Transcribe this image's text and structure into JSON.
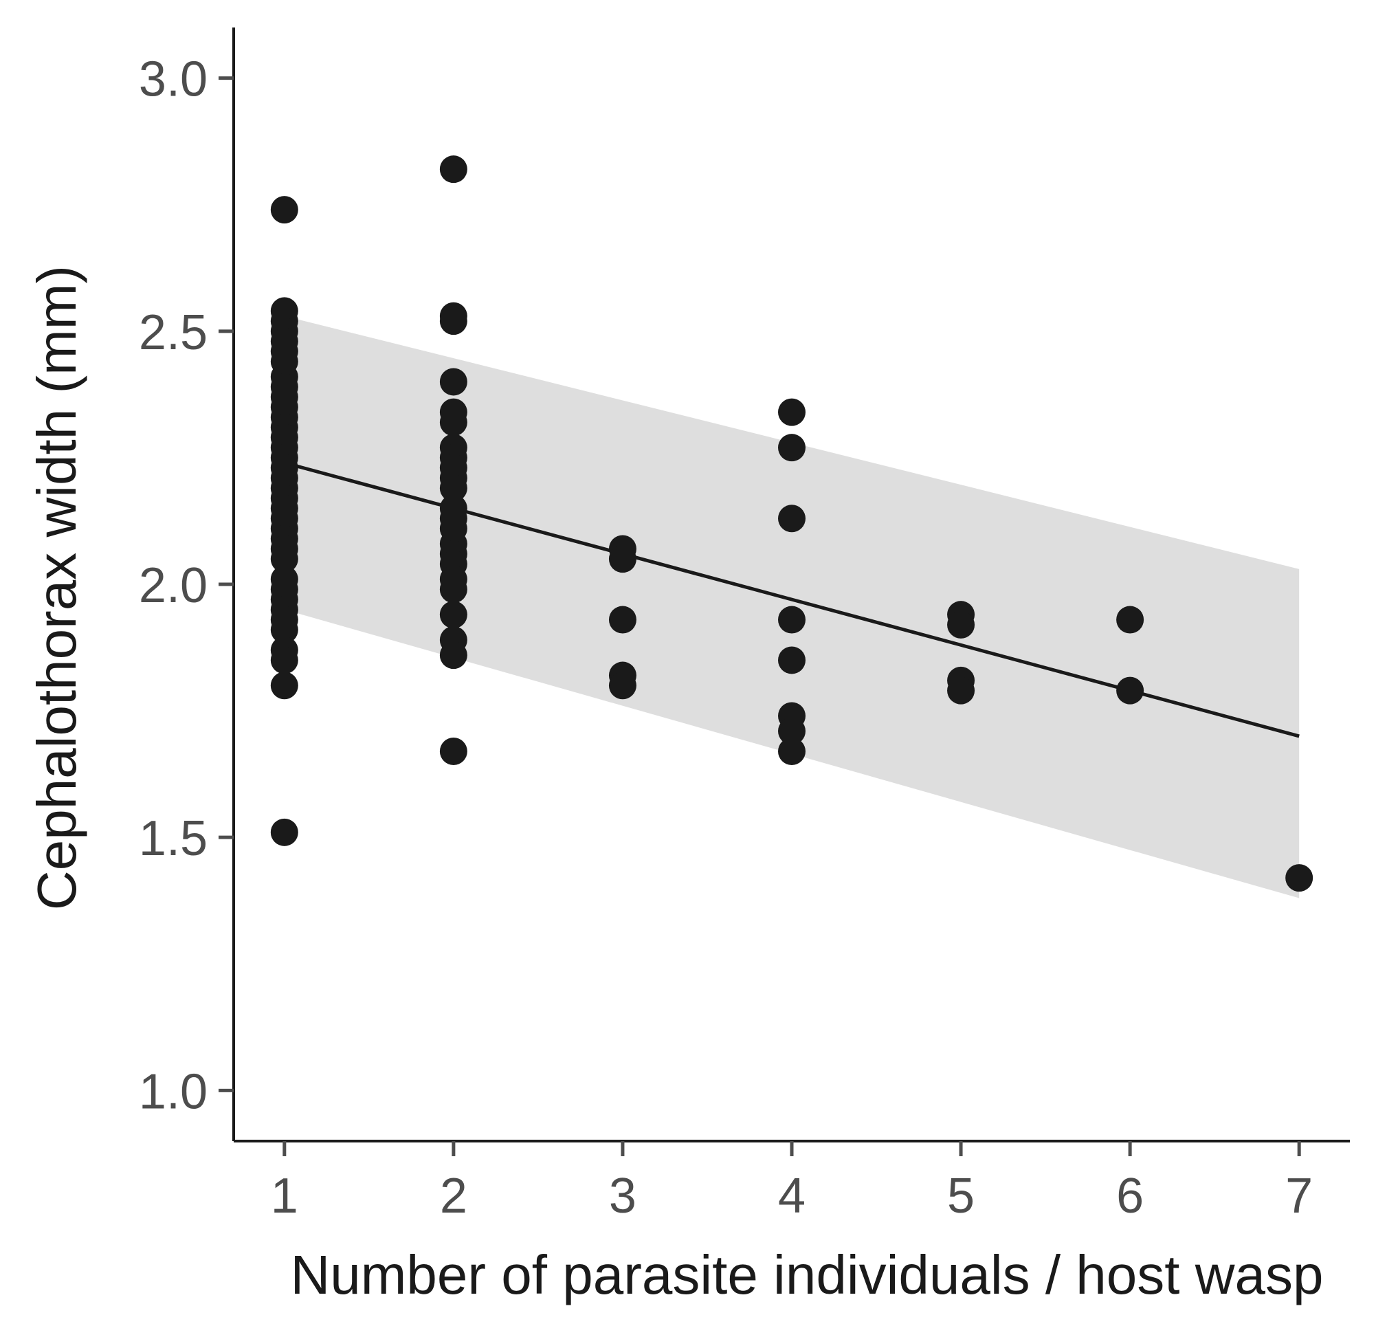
{
  "chart_data": {
    "type": "scatter",
    "xlabel": "Number of parasite individuals / host wasp",
    "ylabel": "Cephalothorax width (mm)",
    "xlim": [
      0.7,
      7.3
    ],
    "ylim": [
      0.9,
      3.1
    ],
    "x_ticks": [
      1,
      2,
      3,
      4,
      5,
      6,
      7
    ],
    "x_tick_labels": [
      "1",
      "2",
      "3",
      "4",
      "5",
      "6",
      "7"
    ],
    "y_ticks": [
      1.0,
      1.5,
      2.0,
      2.5,
      3.0
    ],
    "y_tick_labels": [
      "1.0",
      "1.5",
      "2.0",
      "2.5",
      "3.0"
    ],
    "grid": false,
    "colors": {
      "points": "#1a1a1a",
      "line": "#1a1a1a",
      "band": "#dedede",
      "axis": "#1a1a1a",
      "tick": "#4d4d4d"
    },
    "points": [
      {
        "x": 1,
        "y": 2.74
      },
      {
        "x": 1,
        "y": 2.54
      },
      {
        "x": 1,
        "y": 2.52
      },
      {
        "x": 1,
        "y": 2.5
      },
      {
        "x": 1,
        "y": 2.48
      },
      {
        "x": 1,
        "y": 2.46
      },
      {
        "x": 1,
        "y": 2.44
      },
      {
        "x": 1,
        "y": 2.41
      },
      {
        "x": 1,
        "y": 2.39
      },
      {
        "x": 1,
        "y": 2.37
      },
      {
        "x": 1,
        "y": 2.35
      },
      {
        "x": 1,
        "y": 2.33
      },
      {
        "x": 1,
        "y": 2.31
      },
      {
        "x": 1,
        "y": 2.29
      },
      {
        "x": 1,
        "y": 2.27
      },
      {
        "x": 1,
        "y": 2.25
      },
      {
        "x": 1,
        "y": 2.23
      },
      {
        "x": 1,
        "y": 2.21
      },
      {
        "x": 1,
        "y": 2.19
      },
      {
        "x": 1,
        "y": 2.17
      },
      {
        "x": 1,
        "y": 2.15
      },
      {
        "x": 1,
        "y": 2.13
      },
      {
        "x": 1,
        "y": 2.11
      },
      {
        "x": 1,
        "y": 2.09
      },
      {
        "x": 1,
        "y": 2.07
      },
      {
        "x": 1,
        "y": 2.05
      },
      {
        "x": 1,
        "y": 2.01
      },
      {
        "x": 1,
        "y": 1.99
      },
      {
        "x": 1,
        "y": 1.97
      },
      {
        "x": 1,
        "y": 1.95
      },
      {
        "x": 1,
        "y": 1.93
      },
      {
        "x": 1,
        "y": 1.91
      },
      {
        "x": 1,
        "y": 1.87
      },
      {
        "x": 1,
        "y": 1.85
      },
      {
        "x": 1,
        "y": 1.8
      },
      {
        "x": 1,
        "y": 1.51
      },
      {
        "x": 2,
        "y": 2.82
      },
      {
        "x": 2,
        "y": 2.53
      },
      {
        "x": 2,
        "y": 2.52
      },
      {
        "x": 2,
        "y": 2.4
      },
      {
        "x": 2,
        "y": 2.34
      },
      {
        "x": 2,
        "y": 2.32
      },
      {
        "x": 2,
        "y": 2.27
      },
      {
        "x": 2,
        "y": 2.25
      },
      {
        "x": 2,
        "y": 2.23
      },
      {
        "x": 2,
        "y": 2.21
      },
      {
        "x": 2,
        "y": 2.19
      },
      {
        "x": 2,
        "y": 2.15
      },
      {
        "x": 2,
        "y": 2.13
      },
      {
        "x": 2,
        "y": 2.11
      },
      {
        "x": 2,
        "y": 2.08
      },
      {
        "x": 2,
        "y": 2.06
      },
      {
        "x": 2,
        "y": 2.04
      },
      {
        "x": 2,
        "y": 2.01
      },
      {
        "x": 2,
        "y": 1.99
      },
      {
        "x": 2,
        "y": 1.94
      },
      {
        "x": 2,
        "y": 1.89
      },
      {
        "x": 2,
        "y": 1.86
      },
      {
        "x": 2,
        "y": 1.67
      },
      {
        "x": 3,
        "y": 2.07
      },
      {
        "x": 3,
        "y": 2.05
      },
      {
        "x": 3,
        "y": 1.93
      },
      {
        "x": 3,
        "y": 1.82
      },
      {
        "x": 3,
        "y": 1.8
      },
      {
        "x": 4,
        "y": 2.34
      },
      {
        "x": 4,
        "y": 2.27
      },
      {
        "x": 4,
        "y": 2.13
      },
      {
        "x": 4,
        "y": 1.93
      },
      {
        "x": 4,
        "y": 1.85
      },
      {
        "x": 4,
        "y": 1.74
      },
      {
        "x": 4,
        "y": 1.71
      },
      {
        "x": 4,
        "y": 1.67
      },
      {
        "x": 5,
        "y": 1.94
      },
      {
        "x": 5,
        "y": 1.92
      },
      {
        "x": 5,
        "y": 1.81
      },
      {
        "x": 5,
        "y": 1.79
      },
      {
        "x": 6,
        "y": 1.93
      },
      {
        "x": 6,
        "y": 1.79
      },
      {
        "x": 7,
        "y": 1.42
      }
    ],
    "fit_line": {
      "x": [
        1,
        7
      ],
      "y": [
        2.24,
        1.7
      ]
    },
    "confidence_band": {
      "x": [
        1,
        7
      ],
      "upper": [
        2.53,
        2.03
      ],
      "lower": [
        1.95,
        1.38
      ]
    }
  }
}
